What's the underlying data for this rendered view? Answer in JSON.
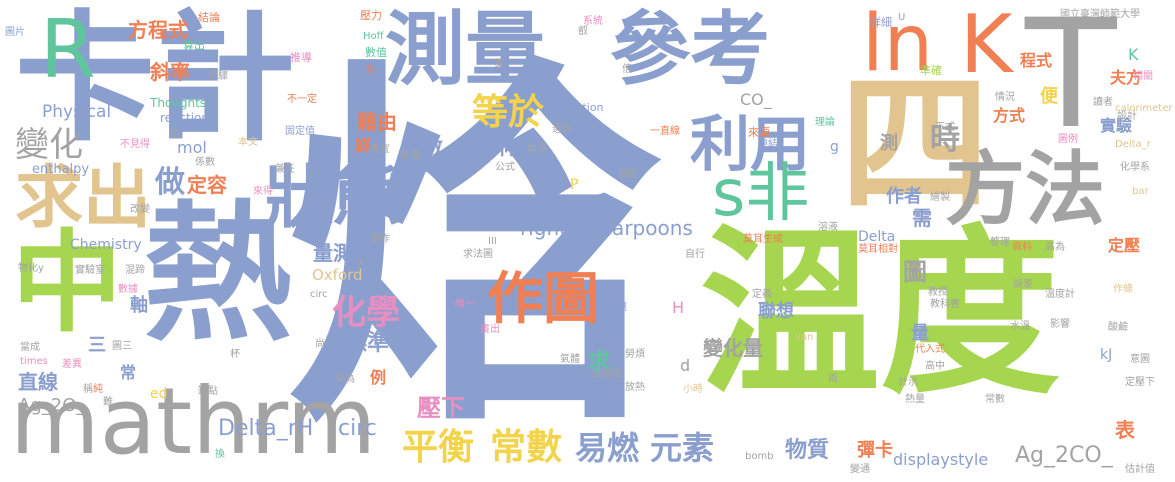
{
  "title": "國立臺灣師範大學",
  "colors": {
    "blue": "#8b9fcf",
    "green": "#a6d64f",
    "gray": "#a3a3a3",
    "tan": "#e2c48f",
    "orange": "#f07f54",
    "pink": "#e98ec2",
    "teal": "#5fc59c",
    "yellow": "#f2d34a",
    "brown": "#c9b08a"
  },
  "words": {
    "big": {
      "han": "焓",
      "heat": "熱",
      "temp": "溫度",
      "calorimeter": "卡計",
      "mathrm": "mathrm",
      "measure": "測量",
      "reference": "參考",
      "ln": "ln",
      "k": "K",
      "t": "T",
      "four": "四",
      "r": "R",
      "middle": "中",
      "method": "方法",
      "find": "求出",
      "state": "狀態",
      "use": "利用",
      "s_non": "s非",
      "plot": "作圖",
      "chemistry_zh": "化學",
      "balance": "平衡",
      "constant": "常數",
      "flammable": "易燃",
      "element": "元素",
      "equal": "等於",
      "change": "變化",
      "do": "做",
      "time": "時",
      "formula": "方程式",
      "slope": "斜率"
    },
    "medium": [
      "Delta_rH",
      "circ",
      "rightleftharpoons",
      "Ag_2CO_",
      "displaystyle",
      "Ag_2O_",
      "Physical",
      "Chemistry",
      "enthalpy",
      "reaction",
      "Thoughts",
      "Oxford",
      "mol",
      "CO_",
      "Delta",
      "kJ",
      "g",
      "d",
      "H",
      "P",
      "K",
      "equation",
      "calorimeter"
    ],
    "small_zh": [
      "藉由",
      "函數",
      "特何",
      "定容",
      "圖形",
      "量測",
      "標準",
      "直線",
      "壓下",
      "內能",
      "物質",
      "彈卡",
      "變化量",
      "聯想",
      "作者",
      "程式",
      "夫方",
      "實驗",
      "方式",
      "表",
      "需",
      "圖",
      "測",
      "便",
      "定壓",
      "軸",
      "例",
      "三",
      "常",
      "求",
      "量",
      "結論",
      "詳",
      "算出",
      "步驟",
      "推導",
      "壓力",
      "系統",
      "數值",
      "圖片",
      "詳細",
      "準確",
      "相關",
      "讀者",
      "設計",
      "理論",
      "來源",
      "連結",
      "下式",
      "情況",
      "圖例",
      "化學系",
      "一直線",
      "固定值",
      "本文",
      "不見得",
      "係數",
      "參閱",
      "常見",
      "選好",
      "公式",
      "固定",
      "氣體",
      "勞煩",
      "放熱",
      "保麗龍",
      "莫耳生成",
      "莫耳相對",
      "溶液",
      "繪製",
      "整理",
      "資料",
      "高為",
      "定義",
      "教授",
      "教科書",
      "溫度計",
      "影響",
      "水溫",
      "高中",
      "代入式",
      "常數",
      "熱量",
      "兩",
      "唯一",
      "畫出",
      "自行",
      "求法圖",
      "缺點",
      "失為",
      "尚",
      "杯",
      "圖三",
      "當成",
      "差異",
      "實驗室",
      "物化y",
      "數據",
      "混蹄",
      "製作",
      "改變",
      "兼任",
      "來得",
      "權宜",
      "不一定",
      "作條",
      "誤差",
      "酸鹼",
      "意圖",
      "定壓下",
      "估計值",
      "變通",
      "叡",
      "倍",
      "策",
      "五",
      "純",
      "換",
      "難",
      "稱",
      "供",
      "小時",
      "邵智宏",
      "計示"
    ],
    "small_en": [
      "Hoff",
      "van",
      "times",
      "bomb",
      "bar",
      "circ",
      "U",
      "Delta_r",
      "ed",
      "III",
      "x"
    ]
  }
}
